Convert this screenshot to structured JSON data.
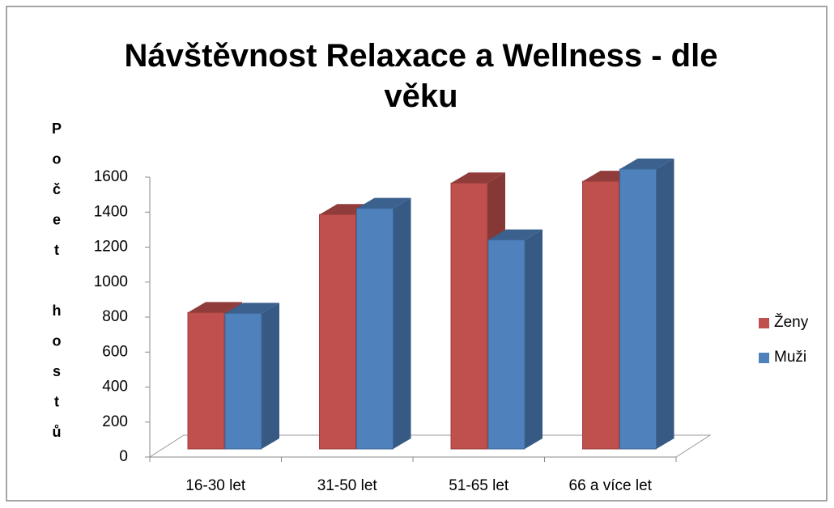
{
  "chart_data": {
    "type": "bar3d",
    "title": "Návštěvnost Relaxace a Wellness - dle věku",
    "y_label": "Počet hostů",
    "categories": [
      "16-30 let",
      "31-50 let",
      "51-65 let",
      "66 a více let"
    ],
    "series": [
      {
        "name": "Ženy",
        "color": "#c0504d",
        "values": [
          780,
          1340,
          1520,
          1530
        ]
      },
      {
        "name": "Muži",
        "color": "#4f81bd",
        "values": [
          775,
          1375,
          1195,
          1600
        ]
      }
    ],
    "ylim": [
      0,
      1600
    ],
    "yticks": [
      0,
      200,
      400,
      600,
      800,
      1000,
      1200,
      1400,
      1600
    ],
    "legend": "right"
  }
}
